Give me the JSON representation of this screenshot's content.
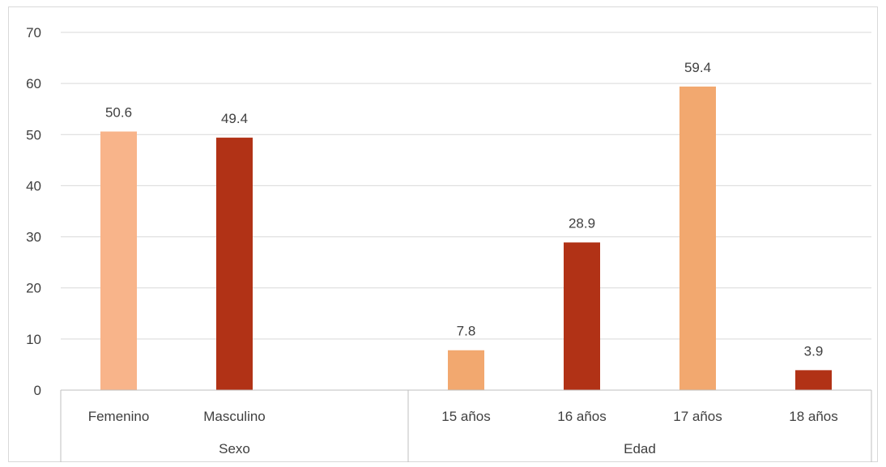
{
  "chart_data": {
    "type": "bar",
    "title": "",
    "xlabel": "",
    "ylabel": "",
    "ylim": [
      0,
      70
    ],
    "yticks": [
      0,
      10,
      20,
      30,
      40,
      50,
      60,
      70
    ],
    "grid": true,
    "legend": "none",
    "groups": [
      {
        "label": "Sexo",
        "categories": [
          "Femenino",
          "Masculino",
          ""
        ]
      },
      {
        "label": "Edad",
        "categories": [
          "15 años",
          "16 años",
          "17 años",
          "18 años"
        ]
      }
    ],
    "categories": [
      "Femenino",
      "Masculino",
      "",
      "15 años",
      "16 años",
      "17 años",
      "18 años"
    ],
    "values": [
      50.6,
      49.4,
      null,
      7.8,
      28.9,
      59.4,
      3.9
    ],
    "bar_colors": [
      "#f8b48a",
      "#b13216",
      null,
      "#f2a86f",
      "#b13216",
      "#f2a86f",
      "#b13216"
    ],
    "colors": {
      "grid": "#d9d9d9",
      "axis": "#bfbfbf",
      "text": "#404040"
    }
  }
}
